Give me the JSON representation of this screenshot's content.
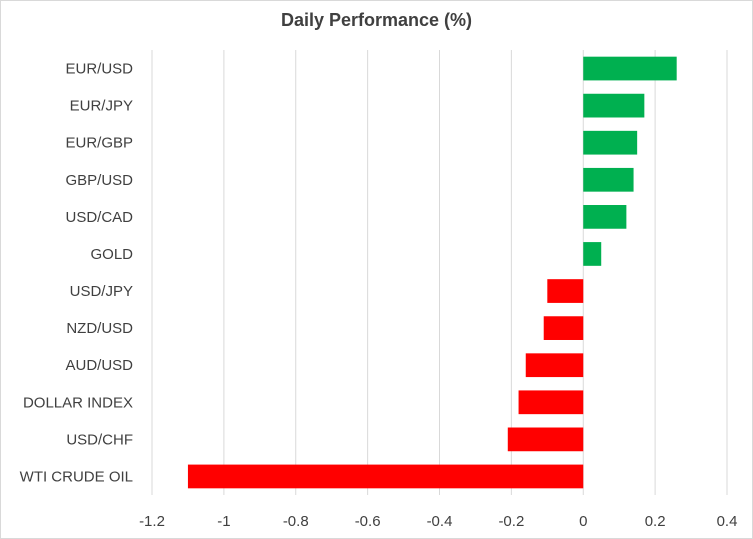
{
  "chart_data": {
    "type": "bar",
    "orientation": "horizontal",
    "title": "Daily Performance (%)",
    "xlabel": "",
    "ylabel": "",
    "categories": [
      "EUR/USD",
      "EUR/JPY",
      "EUR/GBP",
      "GBP/USD",
      "USD/CAD",
      "GOLD",
      "USD/JPY",
      "NZD/USD",
      "AUD/USD",
      "DOLLAR INDEX",
      "USD/CHF",
      "WTI CRUDE OIL"
    ],
    "values": [
      0.26,
      0.17,
      0.15,
      0.14,
      0.12,
      0.05,
      -0.1,
      -0.11,
      -0.16,
      -0.18,
      -0.21,
      -1.1
    ],
    "xlim": [
      -1.2,
      0.4
    ],
    "xticks": [
      "-1.2",
      "-1",
      "-0.8",
      "-0.6",
      "-0.4",
      "-0.2",
      "0",
      "0.2",
      "0.4"
    ],
    "xtick_values": [
      -1.2,
      -1,
      -0.8,
      -0.6,
      -0.4,
      -0.2,
      0,
      0.2,
      0.4
    ],
    "grid": "vertical",
    "legend": "none",
    "colors": {
      "positive": "#00b050",
      "negative": "#ff0000",
      "grid": "#d9d9d9",
      "text": "#404040"
    }
  }
}
